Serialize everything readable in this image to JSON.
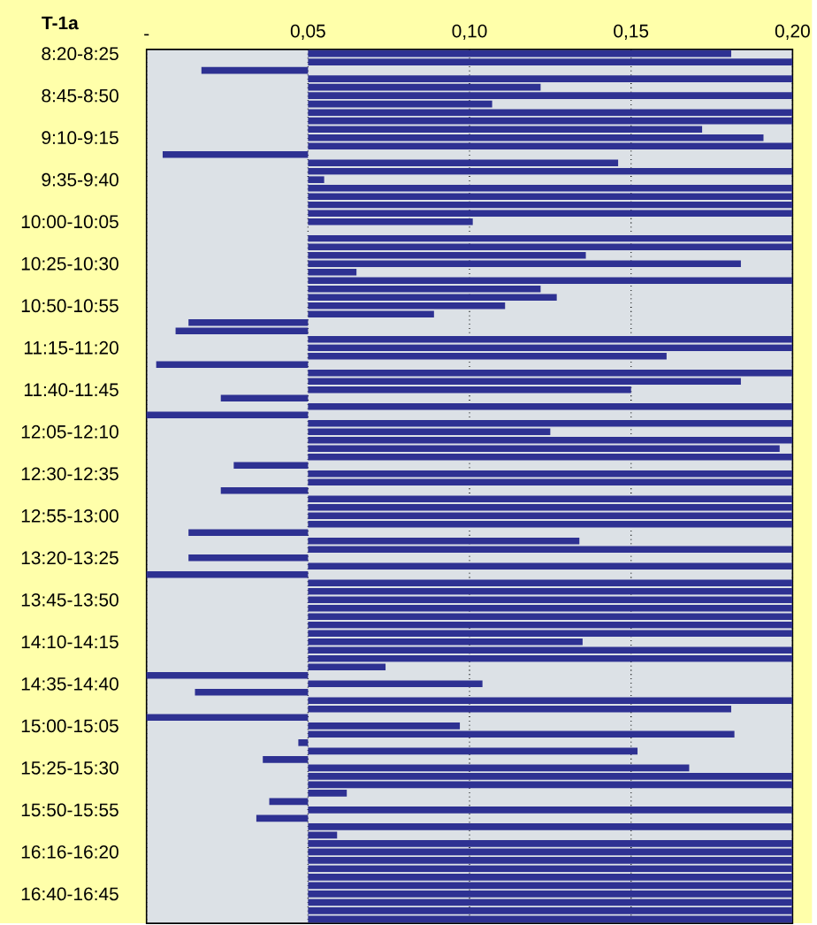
{
  "chart_data": {
    "type": "bar",
    "orientation": "horizontal",
    "title": "T-1a",
    "categories": [
      "8:20-8:25",
      null,
      null,
      null,
      null,
      "8:45-8:50",
      null,
      null,
      null,
      null,
      "9:10-9:15",
      null,
      null,
      null,
      null,
      "9:35-9:40",
      null,
      null,
      null,
      null,
      "10:00-10:05",
      null,
      null,
      null,
      null,
      "10:25-10:30",
      null,
      null,
      null,
      null,
      "10:50-10:55",
      null,
      null,
      null,
      null,
      "11:15-11:20",
      null,
      null,
      null,
      null,
      "11:40-11:45",
      null,
      null,
      null,
      null,
      "12:05-12:10",
      null,
      null,
      null,
      null,
      "12:30-12:35",
      null,
      null,
      null,
      null,
      "12:55-13:00",
      null,
      null,
      null,
      null,
      "13:20-13:25",
      null,
      null,
      null,
      null,
      "13:45-13:50",
      null,
      null,
      null,
      null,
      "14:10-14:15",
      null,
      null,
      null,
      null,
      "14:35-14:40",
      null,
      null,
      null,
      null,
      "15:00-15:05",
      null,
      null,
      null,
      null,
      "15:25-15:30",
      null,
      null,
      null,
      null,
      "15:50-15:55",
      null,
      null,
      null,
      null,
      "16:16-16:20",
      null,
      null,
      null,
      null,
      "16:40-16:45",
      null,
      null,
      null
    ],
    "values": [
      0.131,
      0.15,
      -0.033,
      0.15,
      0.072,
      0.15,
      0.057,
      0.15,
      0.15,
      0.122,
      0.141,
      0.15,
      -0.045,
      0.096,
      0.15,
      0.005,
      0.15,
      0.15,
      0.15,
      0.15,
      0.051,
      null,
      0.15,
      0.15,
      0.086,
      0.134,
      0.015,
      0.15,
      0.072,
      0.077,
      0.061,
      0.039,
      -0.037,
      -0.041,
      0.15,
      0.15,
      0.111,
      -0.047,
      0.15,
      0.134,
      0.1,
      -0.027,
      0.15,
      -0.05,
      0.15,
      0.075,
      0.15,
      0.146,
      0.15,
      -0.023,
      0.15,
      0.15,
      -0.027,
      0.15,
      0.15,
      0.15,
      0.15,
      -0.037,
      0.084,
      0.15,
      -0.037,
      0.15,
      -0.05,
      0.15,
      0.15,
      0.15,
      0.15,
      0.15,
      0.15,
      0.15,
      0.085,
      0.15,
      0.15,
      0.024,
      -0.05,
      0.054,
      -0.035,
      0.15,
      0.131,
      -0.05,
      0.047,
      0.132,
      -0.003,
      0.102,
      -0.014,
      0.118,
      0.15,
      0.15,
      0.012,
      -0.012,
      0.15,
      -0.016,
      0.15,
      0.009,
      0.15,
      0.15,
      0.15,
      0.15,
      0.15,
      0.15,
      0.15,
      0.15,
      0.15,
      0.15
    ],
    "base": [
      0.05,
      0.05,
      0.05,
      0.05,
      0.05,
      0.05,
      0.05,
      0.05,
      0.05,
      0.05,
      0.05,
      0.05,
      0.05,
      0.05,
      0.05,
      0.05,
      0.05,
      0.05,
      0.05,
      0.05,
      0.05,
      null,
      0.05,
      0.05,
      0.05,
      0.05,
      0.05,
      0.05,
      0.05,
      0.05,
      0.05,
      0.05,
      0.05,
      0.05,
      0.05,
      0.05,
      0.05,
      0.05,
      0.05,
      0.05,
      0.05,
      0.05,
      0.05,
      0.05,
      0.05,
      0.05,
      0.05,
      0.05,
      0.05,
      0.05,
      0.05,
      0.05,
      0.05,
      0.05,
      0.05,
      0.05,
      0.05,
      0.05,
      0.05,
      0.05,
      0.05,
      0.05,
      0.05,
      0.05,
      0.05,
      0.05,
      0.05,
      0.05,
      0.05,
      0.05,
      0.05,
      0.05,
      0.05,
      0.05,
      0.05,
      0.05,
      0.05,
      0.05,
      0.05,
      0.05,
      0.05,
      0.05,
      0.05,
      0.05,
      0.05,
      0.05,
      0.05,
      0.05,
      0.05,
      0.05,
      0.05,
      0.05,
      0.05,
      0.05,
      0.05,
      0.05,
      0.05,
      0.05,
      0.05,
      0.05,
      0.05,
      0.05,
      0.05,
      0.05
    ],
    "color": "#2e3192",
    "xlim": [
      0,
      0.2
    ],
    "xticks": [
      {
        "value": 0,
        "label": "-"
      },
      {
        "value": 0.05,
        "label": "0,05"
      },
      {
        "value": 0.1,
        "label": "0,10"
      },
      {
        "value": 0.15,
        "label": "0,15"
      },
      {
        "value": 0.2,
        "label": "0,20"
      }
    ],
    "grid": "x"
  }
}
